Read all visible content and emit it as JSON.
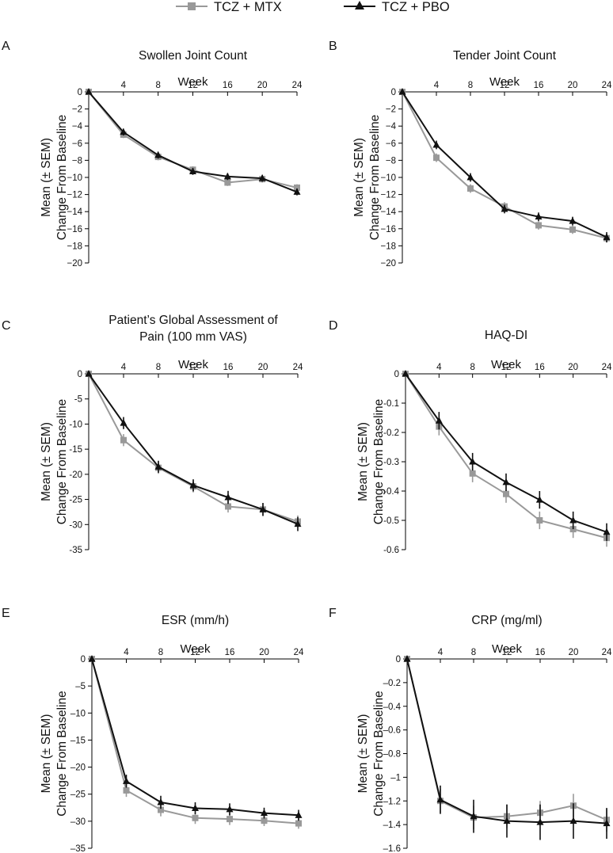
{
  "legend": [
    {
      "name": "TCZ + MTX",
      "color": "#999999",
      "marker": "square"
    },
    {
      "name": "TCZ + PBO",
      "color": "#111111",
      "marker": "triangle"
    }
  ],
  "chart_data": [
    {
      "type": "line",
      "letter": "A",
      "title": [
        "Swollen Joint Count"
      ],
      "xlabel": "Week",
      "ylabel": [
        "Mean (± SEM)",
        "Change From Baseline"
      ],
      "x": [
        0,
        4,
        8,
        12,
        16,
        20,
        24
      ],
      "xticks": [
        4,
        8,
        12,
        16,
        20,
        24
      ],
      "xlim": [
        0,
        24
      ],
      "ylim": [
        -20,
        0
      ],
      "yticks": [
        0,
        -2,
        -4,
        -6,
        -8,
        -10,
        -12,
        -14,
        -16,
        -18,
        -20
      ],
      "ytick_labels": [
        "0",
        "−2",
        "−4",
        "−6",
        "−8",
        "−10",
        "−12",
        "−14",
        "−16",
        "−18",
        "−20"
      ],
      "series": [
        {
          "name": "TCZ + MTX",
          "values": [
            0,
            -5.0,
            -7.6,
            -9.1,
            -10.6,
            -10.2,
            -11.2
          ],
          "sem": [
            0,
            0.4,
            0.4,
            0.4,
            0.4,
            0.4,
            0.4
          ]
        },
        {
          "name": "TCZ + PBO",
          "values": [
            0,
            -4.7,
            -7.4,
            -9.3,
            -9.9,
            -10.1,
            -11.7
          ],
          "sem": [
            0,
            0.4,
            0.4,
            0.4,
            0.4,
            0.4,
            0.4
          ]
        }
      ]
    },
    {
      "type": "line",
      "letter": "B",
      "title": [
        "Tender Joint Count"
      ],
      "xlabel": "Week",
      "ylabel": [
        "Mean (± SEM)",
        "Change From Baseline"
      ],
      "x": [
        0,
        4,
        8,
        12,
        16,
        20,
        24
      ],
      "xticks": [
        4,
        8,
        12,
        16,
        20,
        24
      ],
      "xlim": [
        0,
        24
      ],
      "ylim": [
        -20,
        0
      ],
      "yticks": [
        0,
        -2,
        -4,
        -6,
        -8,
        -10,
        -12,
        -14,
        -16,
        -18,
        -20
      ],
      "ytick_labels": [
        "0",
        "−2",
        "−4",
        "−6",
        "−8",
        "−10",
        "−12",
        "−14",
        "−16",
        "−18",
        "−20"
      ],
      "series": [
        {
          "name": "TCZ + MTX",
          "values": [
            0,
            -7.7,
            -11.3,
            -13.4,
            -15.6,
            -16.1,
            -17.1
          ],
          "sem": [
            0,
            0.5,
            0.5,
            0.5,
            0.5,
            0.5,
            0.5
          ]
        },
        {
          "name": "TCZ + PBO",
          "values": [
            0,
            -6.2,
            -10.0,
            -13.7,
            -14.6,
            -15.1,
            -17.0
          ],
          "sem": [
            0,
            0.5,
            0.5,
            0.5,
            0.5,
            0.5,
            0.6
          ]
        }
      ]
    },
    {
      "type": "line",
      "letter": "C",
      "title": [
        "Patient’s Global Assessment of",
        "Pain (100 mm VAS)"
      ],
      "xlabel": "Week",
      "ylabel": [
        "Mean (± SEM)",
        "Change From Baseline"
      ],
      "x": [
        0,
        4,
        8,
        12,
        16,
        20,
        24
      ],
      "xticks": [
        4,
        8,
        12,
        16,
        20,
        24
      ],
      "xlim": [
        0,
        24
      ],
      "ylim": [
        -35,
        0
      ],
      "yticks": [
        0,
        -5,
        -10,
        -15,
        -20,
        -25,
        -30,
        -35
      ],
      "ytick_labels": [
        "0",
        "-5",
        "-10",
        "-15",
        "-20",
        "-25",
        "-30",
        "-35"
      ],
      "series": [
        {
          "name": "TCZ + MTX",
          "values": [
            0,
            -13.2,
            -18.7,
            -22.4,
            -26.4,
            -27.0,
            -29.4
          ],
          "sem": [
            0,
            1.2,
            1.2,
            1.2,
            1.2,
            1.2,
            1.2
          ]
        },
        {
          "name": "TCZ + PBO",
          "values": [
            0,
            -9.8,
            -18.5,
            -22.2,
            -24.6,
            -27.0,
            -29.9
          ],
          "sem": [
            0,
            1.2,
            1.2,
            1.2,
            1.3,
            1.3,
            1.4
          ]
        }
      ]
    },
    {
      "type": "line",
      "letter": "D",
      "title": [
        "HAQ-DI"
      ],
      "xlabel": "Week",
      "ylabel": [
        "Mean (± SEM)",
        "Change From Baseline"
      ],
      "x": [
        0,
        4,
        8,
        12,
        16,
        20,
        24
      ],
      "xticks": [
        4,
        8,
        12,
        16,
        20,
        24
      ],
      "xlim": [
        0,
        24
      ],
      "ylim": [
        -0.6,
        0
      ],
      "yticks": [
        0,
        -0.1,
        -0.2,
        -0.3,
        -0.4,
        -0.5,
        -0.6
      ],
      "ytick_labels": [
        "0",
        "-0.1",
        "-0.2",
        "-0.3",
        "-0.4",
        "-0.5",
        "-0.6"
      ],
      "series": [
        {
          "name": "TCZ + MTX",
          "values": [
            0,
            -0.18,
            -0.34,
            -0.41,
            -0.5,
            -0.53,
            -0.56
          ],
          "sem": [
            0,
            0.03,
            0.03,
            0.03,
            0.03,
            0.03,
            0.03
          ]
        },
        {
          "name": "TCZ + PBO",
          "values": [
            0,
            -0.16,
            -0.3,
            -0.37,
            -0.43,
            -0.5,
            -0.54
          ],
          "sem": [
            0,
            0.03,
            0.03,
            0.03,
            0.03,
            0.03,
            0.03
          ]
        }
      ]
    },
    {
      "type": "line",
      "letter": "E",
      "title": [
        "ESR (mm/h)"
      ],
      "xlabel": "Week",
      "ylabel": [
        "Mean (± SEM)",
        "Change From Baseline"
      ],
      "x": [
        0,
        4,
        8,
        12,
        16,
        20,
        24
      ],
      "xticks": [
        4,
        8,
        12,
        16,
        20,
        24
      ],
      "xlim": [
        0,
        24
      ],
      "ylim": [
        -35,
        0
      ],
      "yticks": [
        0,
        -5,
        -10,
        -15,
        -20,
        -25,
        -30,
        -35
      ],
      "ytick_labels": [
        "0",
        "–5",
        "–10",
        "–15",
        "–20",
        "–25",
        "–30",
        "–35"
      ],
      "series": [
        {
          "name": "TCZ + MTX",
          "values": [
            0,
            -24.3,
            -27.9,
            -29.4,
            -29.6,
            -29.9,
            -30.4
          ],
          "sem": [
            0,
            1.2,
            1.2,
            1.1,
            1.1,
            1.0,
            1.0
          ]
        },
        {
          "name": "TCZ + PBO",
          "values": [
            0,
            -22.6,
            -26.5,
            -27.6,
            -27.8,
            -28.5,
            -28.9
          ],
          "sem": [
            0,
            1.2,
            1.2,
            1.1,
            1.1,
            1.0,
            1.0
          ]
        }
      ]
    },
    {
      "type": "line",
      "letter": "F",
      "title": [
        "CRP (mg/ml)"
      ],
      "xlabel": "Week",
      "ylabel": [
        "Mean (± SEM)",
        "Change From Baseline"
      ],
      "x": [
        0,
        4,
        8,
        12,
        16,
        20,
        24
      ],
      "xticks": [
        4,
        8,
        12,
        16,
        20,
        24
      ],
      "xlim": [
        0,
        24
      ],
      "ylim": [
        -1.6,
        0
      ],
      "yticks": [
        0,
        -0.2,
        -0.4,
        -0.6,
        -0.8,
        -1,
        -1.2,
        -1.4,
        -1.6
      ],
      "ytick_labels": [
        "0",
        "–0.2",
        "–0.4",
        "–0.6",
        "–0.8",
        "–1",
        "–1.2",
        "–1.4",
        "–1.6"
      ],
      "series": [
        {
          "name": "TCZ + MTX",
          "values": [
            0,
            -1.2,
            -1.34,
            -1.33,
            -1.3,
            -1.24,
            -1.36
          ],
          "sem": [
            0,
            0.1,
            0.1,
            0.1,
            0.1,
            0.1,
            0.1
          ]
        },
        {
          "name": "TCZ + PBO",
          "values": [
            0,
            -1.19,
            -1.33,
            -1.37,
            -1.38,
            -1.37,
            -1.39
          ],
          "sem": [
            0,
            0.12,
            0.14,
            0.14,
            0.15,
            0.15,
            0.13
          ]
        }
      ]
    }
  ]
}
